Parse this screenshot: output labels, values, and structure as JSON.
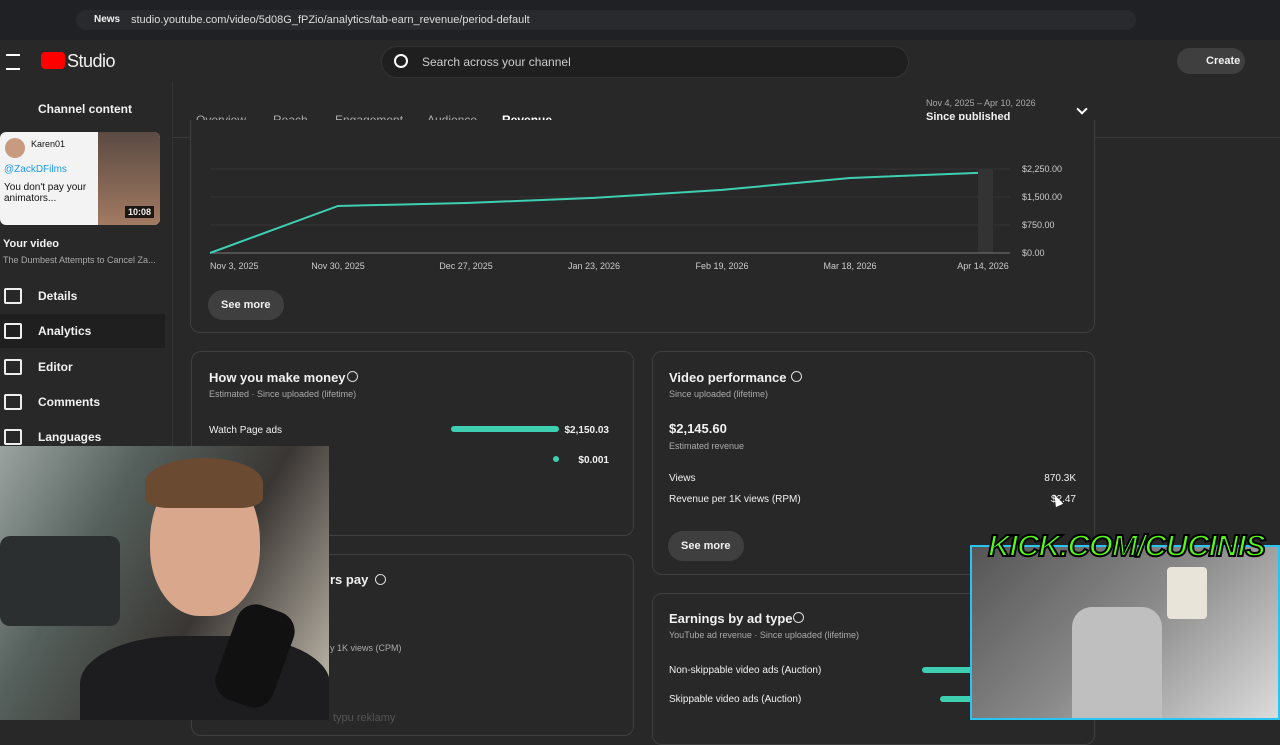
{
  "browser": {
    "bookmark": "News",
    "url": "studio.youtube.com/video/5d08G_fPZio/analytics/tab-earn_revenue/period-default"
  },
  "header": {
    "logo": "Studio",
    "search_placeholder": "Search across your channel",
    "create": "Create"
  },
  "sidebar": {
    "back": "Channel content",
    "thumbnail": {
      "user": "Karen01",
      "mention": "@ZackDFilms",
      "caption": "You don't pay your animators...",
      "duration": "10:08"
    },
    "section": "Your video",
    "video_title": "The Dumbest Attempts to Cancel Za...",
    "nav": [
      "Details",
      "Analytics",
      "Editor",
      "Comments",
      "Languages"
    ],
    "active_nav": 1
  },
  "tabs": {
    "items": [
      "Overview",
      "Reach",
      "Engagement",
      "Audience",
      "Revenue"
    ],
    "active": 4
  },
  "date_range": {
    "range": "Nov 4, 2025 – Apr 10, 2026",
    "label": "Since published"
  },
  "revenue_chart": {
    "type": "line",
    "categories": [
      "Nov 3, 2025",
      "Nov 30, 2025",
      "Dec 27, 2025",
      "Jan 23, 2026",
      "Feb 19, 2026",
      "Mar 18, 2026",
      "Apr 14, 2026"
    ],
    "values": [
      0,
      1260,
      1340,
      1475,
      1690,
      2010,
      2146
    ],
    "color": "#3ecfb2",
    "ylim": [
      0,
      2250
    ],
    "yticks": [
      {
        "value": 0,
        "label": "$0.00"
      },
      {
        "value": 750,
        "label": "$750.00"
      },
      {
        "value": 1500,
        "label": "$1,500.00"
      },
      {
        "value": 2250,
        "label": "$2,250.00"
      }
    ],
    "button": "See more"
  },
  "money_card": {
    "title": "How you make money",
    "subtitle": "Estimated · Since uploaded (lifetime)",
    "color": "#3ecfb2",
    "rows": [
      {
        "label": "Watch Page ads",
        "value": 2150.03,
        "value_label": "$2,150.03"
      },
      {
        "label": null,
        "value": 0.001,
        "value_label": "$0.001"
      }
    ]
  },
  "performance_card": {
    "title": "Video performance",
    "subtitle": "Since uploaded (lifetime)",
    "revenue": "$2,145.60",
    "revenue_label": "Estimated revenue",
    "metrics": [
      {
        "label": "Views",
        "value": "870.3K"
      },
      {
        "label": "Revenue per 1K views (RPM)",
        "value": "$2.47"
      }
    ],
    "button": "See more"
  },
  "cpm_card": {
    "title_fragment": "rs pay",
    "metric_fragment": "y 1K views (CPM)"
  },
  "ad_type_card": {
    "title": "Earnings by ad type",
    "subtitle": "YouTube ad revenue · Since uploaded (lifetime)",
    "rows": [
      "Non-skippable video ads (Auction)",
      "Skippable video ads (Auction)"
    ]
  },
  "footer_fragment": "typu reklamy",
  "overlay": {
    "kick": "KICK.COM/CUCINIS"
  }
}
